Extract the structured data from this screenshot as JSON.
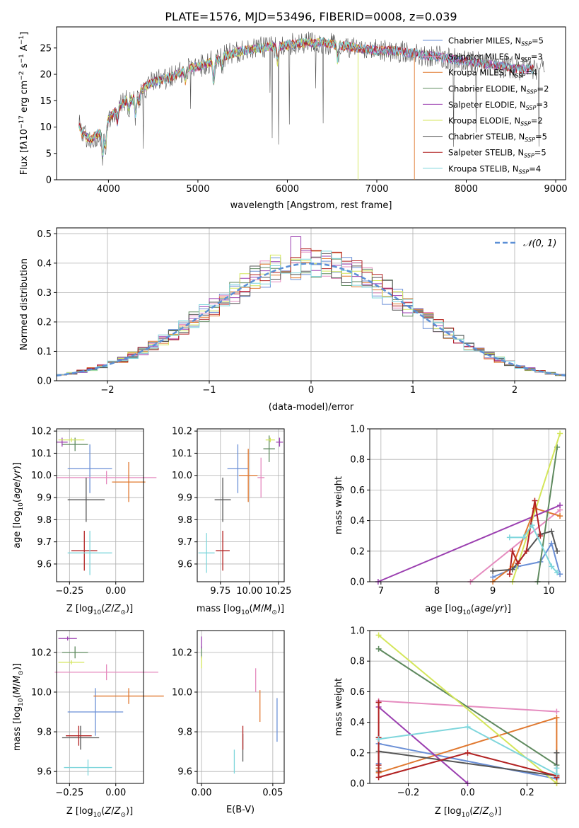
{
  "figure_title": "PLATE=1576, MJD=53496, FIBERID=0008, z=0.039",
  "model_colors": [
    "#6a8fd6",
    "#e58bbf",
    "#e0782f",
    "#5f8a5f",
    "#9b3fb0",
    "#d4e65a",
    "#555555",
    "#b22222",
    "#7fd6dc"
  ],
  "chart_data": [
    {
      "id": "spectrum",
      "type": "line",
      "xlabel": "wavelength [Angstrom, rest frame]",
      "ylabel": "Flux [f_λ10^-17 erg cm^-2 s^-1 A^-1]",
      "xlim": [
        3420,
        9110
      ],
      "ylim": [
        0,
        29
      ],
      "xticks": [
        4000,
        5000,
        6000,
        7000,
        8000,
        9000
      ],
      "yticks": [
        0,
        5,
        10,
        15,
        20,
        25
      ],
      "legend_position": "top-right",
      "legend": [
        "Chabrier MILES, N_SSP=5",
        "Salpeter MILES, N_SSP=3",
        "Kroupa MILES, N_SSP=4",
        "Chabrier ELODIE, N_SSP=2",
        "Salpeter ELODIE, N_SSP=3",
        "Kroupa ELODIE, N_SSP=2",
        "Chabrier STELIB, N_SSP=5",
        "Salpeter STELIB, N_SSP=5",
        "Kroupa STELIB, N_SSP=4"
      ],
      "continuum": {
        "x": [
          3670,
          3700,
          3800,
          3900,
          3950,
          4000,
          4100,
          4200,
          4300,
          4400,
          4500,
          4700,
          4900,
          5100,
          5300,
          5500,
          5700,
          6000,
          6200,
          6400,
          6600,
          6800,
          7000,
          7200,
          7400,
          7600,
          7800,
          8000,
          8200,
          8400,
          8600,
          8800
        ],
        "y": [
          10.5,
          9.0,
          7.5,
          9.0,
          8.0,
          11.5,
          13.5,
          15.0,
          15.5,
          17.5,
          18.5,
          19.5,
          21.0,
          22.0,
          23.5,
          24.5,
          25.0,
          25.5,
          26.0,
          26.0,
          25.5,
          25.0,
          24.5,
          24.5,
          24.0,
          23.5,
          23.0,
          22.5,
          22.0,
          21.5,
          21.0,
          21.0
        ]
      },
      "cutoffs": [
        {
          "series": "Kroupa ELODIE, N_SSP=2",
          "x": 6790
        },
        {
          "series": "Kroupa MILES, N_SSP=4",
          "x": 7420
        }
      ]
    },
    {
      "id": "residuals",
      "type": "step",
      "xlabel": "(data-model)/error",
      "ylabel": "Normed distribution",
      "xlim": [
        -2.5,
        2.5
      ],
      "ylim": [
        0,
        0.52
      ],
      "xticks": [
        -2,
        -1,
        0,
        1,
        2
      ],
      "yticks": [
        0.0,
        0.1,
        0.2,
        0.3,
        0.4,
        0.5
      ],
      "legend_position": "top-right",
      "legend": [
        "𝒩(0, 1)"
      ],
      "bin_width": 0.1,
      "normal_curve": {
        "mean": 0,
        "sigma": 1
      }
    },
    {
      "id": "age_vs_Z",
      "type": "errorbar",
      "xlabel": "Z [log10(Z/Z⊙)]",
      "ylabel": "age [log10(age/yr)]",
      "xlim": [
        -0.32,
        0.15
      ],
      "ylim": [
        9.52,
        10.21
      ],
      "xticks": [
        -0.25,
        0.0
      ],
      "yticks": [
        9.6,
        9.7,
        9.8,
        9.9,
        10.0,
        10.1,
        10.2
      ],
      "points": [
        {
          "x": -0.14,
          "xerr": 0.12,
          "y": 10.03,
          "yerr": 0.11
        },
        {
          "x": -0.05,
          "xerr": 0.27,
          "y": 9.99,
          "yerr": 0.03
        },
        {
          "x": 0.07,
          "xerr": 0.09,
          "y": 9.97,
          "yerr": 0.09
        },
        {
          "x": -0.22,
          "xerr": 0.07,
          "y": 10.14,
          "yerr": 0.03
        },
        {
          "x": -0.29,
          "xerr": 0.03,
          "y": 10.15,
          "yerr": 0.02
        },
        {
          "x": -0.24,
          "xerr": 0.07,
          "y": 10.16,
          "yerr": 0.01
        },
        {
          "x": -0.16,
          "xerr": 0.1,
          "y": 9.89,
          "yerr": 0.1
        },
        {
          "x": -0.17,
          "xerr": 0.07,
          "y": 9.66,
          "yerr": 0.09
        },
        {
          "x": -0.14,
          "xerr": 0.12,
          "y": 9.65,
          "yerr": 0.1
        }
      ]
    },
    {
      "id": "age_vs_mass",
      "type": "errorbar",
      "xlabel": "mass [log10(M/M⊙)]",
      "ylabel": "",
      "xlim": [
        9.55,
        10.3
      ],
      "ylim": [
        9.52,
        10.21
      ],
      "xticks": [
        9.75,
        10.0,
        10.25
      ],
      "yticks": [
        9.6,
        9.7,
        9.8,
        9.9,
        10.0,
        10.1,
        10.2
      ],
      "points": [
        {
          "x": 9.9,
          "xerr": 0.09,
          "y": 10.03,
          "yerr": 0.11
        },
        {
          "x": 10.1,
          "xerr": 0.03,
          "y": 9.99,
          "yerr": 0.09
        },
        {
          "x": 9.99,
          "xerr": 0.08,
          "y": 10.0,
          "yerr": 0.12
        },
        {
          "x": 10.17,
          "xerr": 0.05,
          "y": 10.12,
          "yerr": 0.06
        },
        {
          "x": 10.26,
          "xerr": 0.03,
          "y": 10.15,
          "yerr": 0.02
        },
        {
          "x": 10.18,
          "xerr": 0.04,
          "y": 10.16,
          "yerr": 0.01
        },
        {
          "x": 9.77,
          "xerr": 0.07,
          "y": 9.89,
          "yerr": 0.1
        },
        {
          "x": 9.77,
          "xerr": 0.06,
          "y": 9.66,
          "yerr": 0.09
        },
        {
          "x": 9.63,
          "xerr": 0.07,
          "y": 9.65,
          "yerr": 0.09
        }
      ]
    },
    {
      "id": "weight_vs_age",
      "type": "line",
      "xlabel": "age [log10(age/yr)]",
      "ylabel": "mass weight",
      "xlim": [
        6.8,
        10.3
      ],
      "ylim": [
        0,
        1
      ],
      "xticks": [
        7,
        8,
        9,
        10
      ],
      "yticks": [
        0.0,
        0.2,
        0.4,
        0.6,
        0.8,
        1.0
      ],
      "series": [
        {
          "x": [
            9.0,
            9.45,
            9.85,
            10.05,
            10.2
          ],
          "y": [
            0.03,
            0.1,
            0.13,
            0.25,
            0.05
          ]
        },
        {
          "x": [
            8.6,
            10.2
          ],
          "y": [
            0.0,
            0.47
          ]
        },
        {
          "x": [
            9.0,
            9.35,
            9.75,
            10.2
          ],
          "y": [
            0.0,
            0.1,
            0.48,
            0.43
          ]
        },
        {
          "x": [
            9.8,
            10.15
          ],
          "y": [
            0.0,
            0.88
          ]
        },
        {
          "x": [
            6.95,
            10.2
          ],
          "y": [
            0.0,
            0.5
          ]
        },
        {
          "x": [
            9.35,
            10.2
          ],
          "y": [
            0.0,
            0.97
          ]
        },
        {
          "x": [
            9.0,
            9.35,
            9.85,
            10.05,
            10.15
          ],
          "y": [
            0.07,
            0.08,
            0.31,
            0.33,
            0.2
          ]
        },
        {
          "x": [
            9.3,
            9.35,
            9.45,
            9.6,
            9.75,
            9.85
          ],
          "y": [
            0.05,
            0.2,
            0.12,
            0.2,
            0.53,
            0.3
          ]
        },
        {
          "x": [
            9.3,
            9.55,
            9.7,
            10.05,
            10.15
          ],
          "y": [
            0.29,
            0.29,
            0.37,
            0.1,
            0.06
          ]
        }
      ]
    },
    {
      "id": "mass_vs_Z",
      "type": "errorbar",
      "xlabel": "Z [log10(Z/Z⊙)]",
      "ylabel": "mass [log10(M/M⊙)]",
      "xlim": [
        -0.32,
        0.15
      ],
      "ylim": [
        9.54,
        10.31
      ],
      "xticks": [
        -0.25,
        0.0
      ],
      "yticks": [
        9.6,
        9.8,
        10.0,
        10.2
      ],
      "points": [
        {
          "x": -0.11,
          "xerr": 0.15,
          "y": 9.9,
          "yerr": 0.12
        },
        {
          "x": -0.05,
          "xerr": 0.28,
          "y": 10.1,
          "yerr": 0.04
        },
        {
          "x": 0.07,
          "xerr": 0.19,
          "y": 9.98,
          "yerr": 0.04
        },
        {
          "x": -0.22,
          "xerr": 0.07,
          "y": 10.2,
          "yerr": 0.03
        },
        {
          "x": -0.26,
          "xerr": 0.05,
          "y": 10.27,
          "yerr": 0.01
        },
        {
          "x": -0.24,
          "xerr": 0.07,
          "y": 10.15,
          "yerr": 0.01
        },
        {
          "x": -0.19,
          "xerr": 0.1,
          "y": 9.77,
          "yerr": 0.06
        },
        {
          "x": -0.2,
          "xerr": 0.07,
          "y": 9.78,
          "yerr": 0.05
        },
        {
          "x": -0.15,
          "xerr": 0.13,
          "y": 9.62,
          "yerr": 0.04
        }
      ]
    },
    {
      "id": "mass_vs_EBV",
      "type": "errorbar",
      "xlabel": "E(B-V)",
      "ylabel": "",
      "xlim": [
        -0.003,
        0.058
      ],
      "ylim": [
        9.54,
        10.31
      ],
      "xticks": [
        0.0,
        0.05
      ],
      "yticks": [
        9.6,
        9.8,
        10.0,
        10.2
      ],
      "points": [
        {
          "x": 0.053,
          "xerr": 0.0,
          "y": 9.86,
          "yerr": 0.11
        },
        {
          "x": 0.038,
          "xerr": 0.0,
          "y": 10.06,
          "yerr": 0.06
        },
        {
          "x": 0.041,
          "xerr": 0.0,
          "y": 9.93,
          "yerr": 0.08
        },
        {
          "x": 0.0,
          "xerr": 0.0,
          "y": 10.2,
          "yerr": 0.03
        },
        {
          "x": 0.0,
          "xerr": 0.0,
          "y": 10.25,
          "yerr": 0.03
        },
        {
          "x": 0.0,
          "xerr": 0.0,
          "y": 10.15,
          "yerr": 0.03
        },
        {
          "x": 0.029,
          "xerr": 0.0,
          "y": 9.72,
          "yerr": 0.07
        },
        {
          "x": 0.029,
          "xerr": 0.0,
          "y": 9.77,
          "yerr": 0.06
        },
        {
          "x": 0.023,
          "xerr": 0.0,
          "y": 9.65,
          "yerr": 0.06
        }
      ]
    },
    {
      "id": "weight_vs_Z",
      "type": "line",
      "xlabel": "Z [log10(Z/Z⊙)]",
      "ylabel": "mass weight",
      "xlim": [
        -0.33,
        0.33
      ],
      "ylim": [
        0,
        1
      ],
      "xticks": [
        -0.2,
        0.0,
        0.2
      ],
      "yticks": [
        0.0,
        0.2,
        0.4,
        0.6,
        0.8,
        1.0
      ],
      "series": [
        {
          "x": [
            -0.3,
            -0.3,
            -0.3,
            0.3,
            0.3
          ],
          "y": [
            0.1,
            0.13,
            0.26,
            0.03,
            0.05
          ]
        },
        {
          "x": [
            -0.3,
            0.3
          ],
          "y": [
            0.54,
            0.47
          ]
        },
        {
          "x": [
            -0.3,
            -0.3,
            0.3,
            0.3
          ],
          "y": [
            0.1,
            0.07,
            0.43,
            0.0
          ]
        },
        {
          "x": [
            -0.3,
            0.3
          ],
          "y": [
            0.88,
            0.12
          ]
        },
        {
          "x": [
            -0.3,
            -0.3,
            0.0
          ],
          "y": [
            0.53,
            0.5,
            0.0
          ]
        },
        {
          "x": [
            -0.3,
            0.3
          ],
          "y": [
            0.97,
            0.0
          ]
        },
        {
          "x": [
            -0.3,
            -0.3,
            0.3,
            0.3
          ],
          "y": [
            0.08,
            0.21,
            0.05,
            0.2
          ]
        },
        {
          "x": [
            -0.3,
            -0.3,
            -0.3,
            -0.3,
            0.0,
            0.3,
            0.3
          ],
          "y": [
            0.53,
            0.3,
            0.12,
            0.04,
            0.2,
            0.05,
            0.04
          ]
        },
        {
          "x": [
            -0.3,
            0.0,
            0.3,
            0.3
          ],
          "y": [
            0.29,
            0.37,
            0.06,
            0.1
          ]
        }
      ]
    }
  ]
}
